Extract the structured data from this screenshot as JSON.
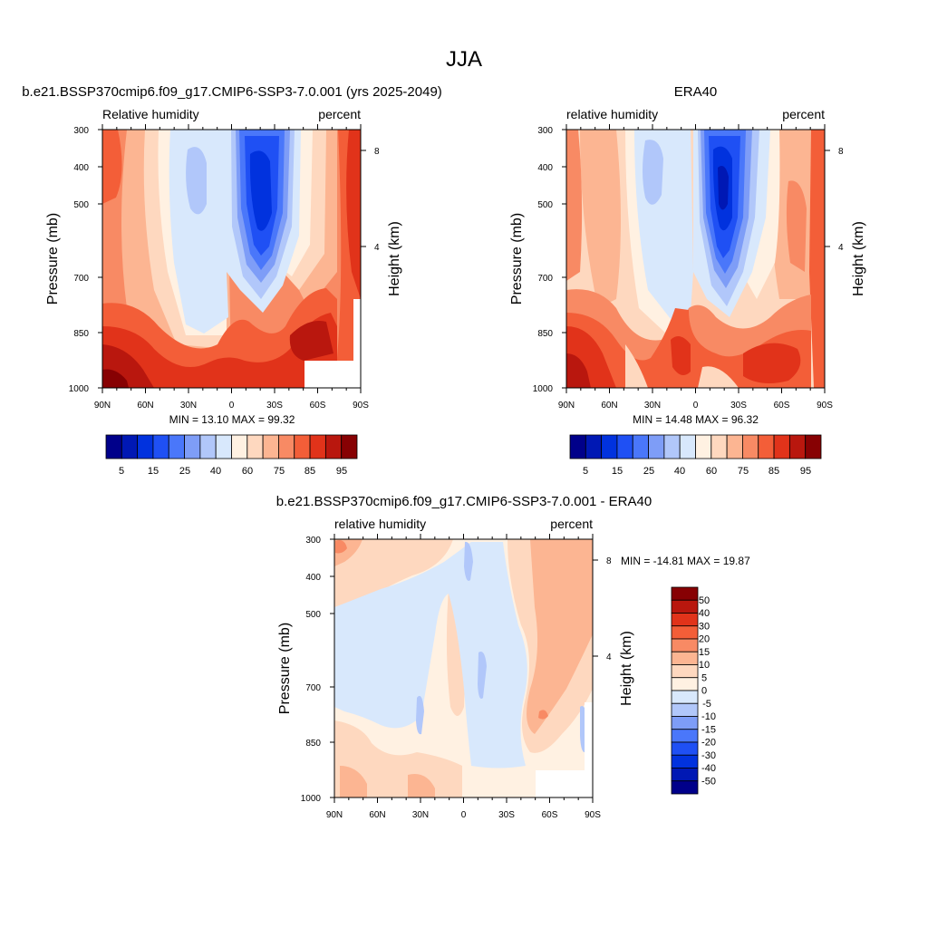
{
  "figure_title": "JJA",
  "colors": {
    "rh_levels": [
      "#00008a",
      "#0018b4",
      "#0132de",
      "#1f50f4",
      "#4a77fa",
      "#7e9df7",
      "#b1c7fa",
      "#d8e8fc",
      "#fff1e2",
      "#fed8bf",
      "#fcb592",
      "#f88a64",
      "#f35e38",
      "#e1331a",
      "#b9170e",
      "#870103"
    ],
    "diff_levels": [
      "#00008a",
      "#0018b4",
      "#0132de",
      "#1f50f4",
      "#4a77fa",
      "#7e9df7",
      "#b1c7fa",
      "#d8e8fc",
      "#fff1e2",
      "#fed8bf",
      "#fcb592",
      "#f88a64",
      "#f35e38",
      "#e1331a",
      "#b9170e",
      "#870103"
    ]
  },
  "panels": [
    {
      "title": "b.e21.BSSP370cmip6.f09_g17.CMIP6-SSP3-7.0.001 (yrs 2025-2049)",
      "left_string": "Relative humidity",
      "right_string": "percent",
      "ylabel": "Pressure (mb)",
      "ylabel_right": "Height (km)",
      "y_ticks": [
        "300",
        "400",
        "500",
        "700",
        "850",
        "1000"
      ],
      "x_ticks": [
        "90N",
        "60N",
        "30N",
        "0",
        "30S",
        "60S",
        "90S"
      ],
      "right_ticks": [
        "8",
        "4"
      ],
      "stats": "MIN =  13.10  MAX =  99.32",
      "colorbar_labels": [
        "5",
        "15",
        "25",
        "40",
        "60",
        "75",
        "85",
        "95"
      ]
    },
    {
      "title": "ERA40",
      "left_string": "relative humidity",
      "right_string": "percent",
      "ylabel": "Pressure (mb)",
      "ylabel_right": "Height (km)",
      "y_ticks": [
        "300",
        "400",
        "500",
        "700",
        "850",
        "1000"
      ],
      "x_ticks": [
        "90N",
        "60N",
        "30N",
        "0",
        "30S",
        "60S",
        "90S"
      ],
      "right_ticks": [
        "8",
        "4"
      ],
      "stats": "MIN =  14.48  MAX =  96.32",
      "colorbar_labels": [
        "5",
        "15",
        "25",
        "40",
        "60",
        "75",
        "85",
        "95"
      ]
    },
    {
      "title": "b.e21.BSSP370cmip6.f09_g17.CMIP6-SSP3-7.0.001 - ERA40",
      "left_string": "relative humidity",
      "right_string": "percent",
      "ylabel": "Pressure (mb)",
      "ylabel_right": "Height (km)",
      "y_ticks": [
        "300",
        "400",
        "500",
        "700",
        "850",
        "1000"
      ],
      "x_ticks": [
        "90N",
        "60N",
        "30N",
        "0",
        "30S",
        "60S",
        "90S"
      ],
      "right_ticks": [
        "8",
        "4"
      ],
      "stats": "MIN = -14.81  MAX =  19.87",
      "colorbar_labels": [
        "50",
        "40",
        "30",
        "20",
        "15",
        "10",
        "5",
        "0",
        "-5",
        "-10",
        "-15",
        "-20",
        "-30",
        "-40",
        "-50"
      ]
    }
  ],
  "chart_data": [
    {
      "type": "heatmap",
      "title": "b.e21.BSSP370cmip6.f09_g17.CMIP6-SSP3-7.0.001 (yrs 2025-2049)",
      "variable": "Relative humidity",
      "units": "percent",
      "xlabel": "",
      "ylabel": "Pressure (mb)",
      "x_ticks": [
        "90N",
        "60N",
        "30N",
        "0",
        "30S",
        "60S",
        "90S"
      ],
      "y_ticks": [
        "300",
        "400",
        "500",
        "700",
        "850",
        "1000"
      ],
      "ylim": [
        1000,
        300
      ],
      "min": 13.1,
      "max": 99.32,
      "levels": [
        5,
        10,
        15,
        20,
        25,
        30,
        40,
        50,
        60,
        70,
        75,
        80,
        85,
        90,
        95
      ]
    },
    {
      "type": "heatmap",
      "title": "ERA40",
      "variable": "relative humidity",
      "units": "percent",
      "xlabel": "",
      "ylabel": "Pressure (mb)",
      "x_ticks": [
        "90N",
        "60N",
        "30N",
        "0",
        "30S",
        "60S",
        "90S"
      ],
      "y_ticks": [
        "300",
        "400",
        "500",
        "700",
        "850",
        "1000"
      ],
      "ylim": [
        1000,
        300
      ],
      "min": 14.48,
      "max": 96.32,
      "levels": [
        5,
        10,
        15,
        20,
        25,
        30,
        40,
        50,
        60,
        70,
        75,
        80,
        85,
        90,
        95
      ]
    },
    {
      "type": "heatmap",
      "title": "b.e21.BSSP370cmip6.f09_g17.CMIP6-SSP3-7.0.001 - ERA40",
      "variable": "relative humidity",
      "units": "percent",
      "xlabel": "",
      "ylabel": "Pressure (mb)",
      "x_ticks": [
        "90N",
        "60N",
        "30N",
        "0",
        "30S",
        "60S",
        "90S"
      ],
      "y_ticks": [
        "300",
        "400",
        "500",
        "700",
        "850",
        "1000"
      ],
      "ylim": [
        1000,
        300
      ],
      "min": -14.81,
      "max": 19.87,
      "levels": [
        -50,
        -40,
        -30,
        -20,
        -15,
        -10,
        -5,
        0,
        5,
        10,
        15,
        20,
        30,
        40,
        50
      ]
    }
  ]
}
